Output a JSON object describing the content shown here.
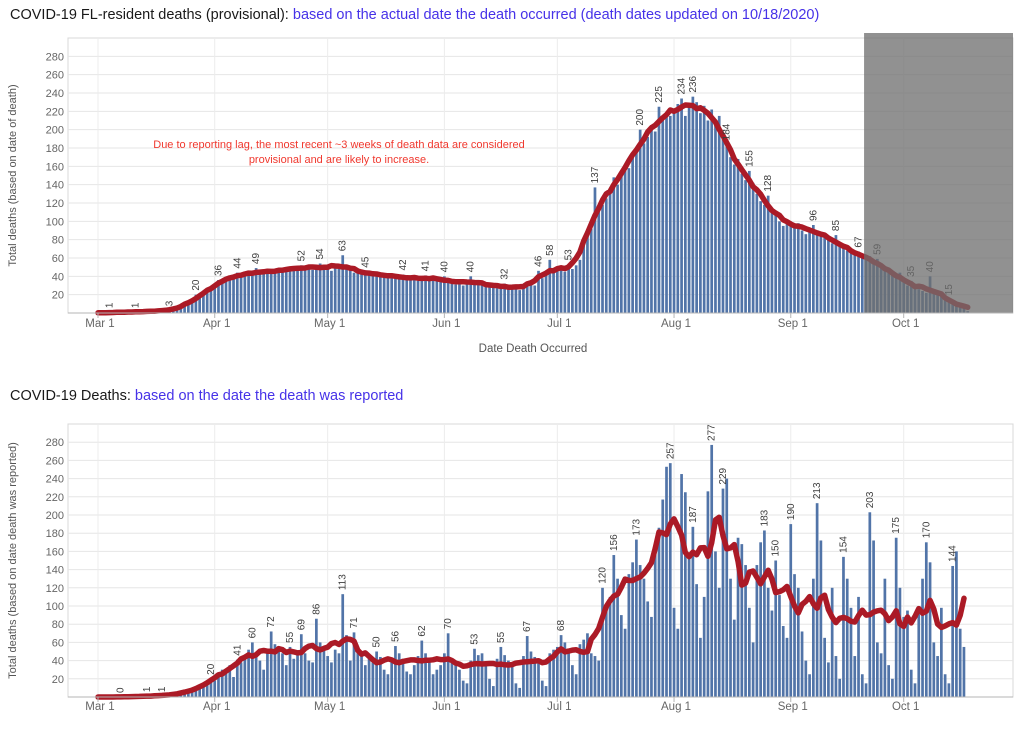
{
  "colors": {
    "bar": "#5174a8",
    "line": "#ab1a26",
    "overlay": "#6f6f6f",
    "grid": "#e6e6e6",
    "month_grid": "#ececec",
    "plot_border": "#d8d8d8",
    "axis_line": "#b5b5b5",
    "tick_text": "#666666",
    "axis_title_text": "#555555",
    "bar_label_text": "#3d3d3d",
    "title_blue": "#4632e8",
    "annotation_red": "#f0382e"
  },
  "chart_data": [
    {
      "type": "bar",
      "title_black": "COVID-19 FL-resident deaths (provisional): ",
      "title_blue": "based on the actual date the death occurred (death dates updated on 10/18/2020)",
      "ylabel": "Total deaths (based on date of death)",
      "xlabel": "Date Death Occurred",
      "start_date": "2020-03-01",
      "ylim": [
        0,
        300
      ],
      "yticks": [
        20,
        40,
        60,
        80,
        100,
        120,
        140,
        160,
        180,
        200,
        220,
        240,
        260,
        280
      ],
      "months": [
        {
          "label": "Mar 1",
          "day": 0
        },
        {
          "label": "Apr 1",
          "day": 31
        },
        {
          "label": "May 1",
          "day": 61
        },
        {
          "label": "Jun 1",
          "day": 92
        },
        {
          "label": "Jul 1",
          "day": 122
        },
        {
          "label": "Aug 1",
          "day": 153
        },
        {
          "label": "Sep 1",
          "day": 184
        },
        {
          "label": "Oct 1",
          "day": 214
        }
      ],
      "values": [
        0,
        0,
        0,
        1,
        0,
        1,
        1,
        1,
        1,
        1,
        1,
        2,
        1,
        2,
        2,
        2,
        2,
        3,
        2,
        3,
        4,
        5,
        6,
        8,
        10,
        14,
        20,
        16,
        19,
        24,
        28,
        30,
        36,
        33,
        37,
        40,
        38,
        44,
        40,
        42,
        44,
        41,
        49,
        45,
        43,
        46,
        44,
        47,
        45,
        48,
        46,
        50,
        47,
        49,
        52,
        48,
        50,
        47,
        51,
        54,
        49,
        50,
        46,
        52,
        48,
        63,
        51,
        47,
        44,
        46,
        43,
        45,
        45,
        42,
        41,
        43,
        40,
        42,
        39,
        41,
        38,
        42,
        38,
        36,
        39,
        35,
        40,
        41,
        37,
        36,
        38,
        35,
        40,
        34,
        36,
        31,
        35,
        30,
        33,
        40,
        33,
        35,
        30,
        32,
        29,
        31,
        27,
        30,
        32,
        28,
        26,
        29,
        25,
        28,
        31,
        33,
        30,
        46,
        38,
        41,
        58,
        44,
        47,
        50,
        45,
        53,
        48,
        52,
        58,
        78,
        85,
        92,
        137,
        110,
        118,
        125,
        132,
        148,
        140,
        155,
        162,
        158,
        170,
        178,
        200,
        185,
        192,
        205,
        198,
        225,
        210,
        218,
        215,
        220,
        228,
        234,
        215,
        225,
        236,
        230,
        218,
        226,
        210,
        222,
        205,
        215,
        195,
        184,
        170,
        162,
        168,
        152,
        145,
        155,
        142,
        130,
        122,
        118,
        128,
        112,
        108,
        100,
        95,
        102,
        100,
        94,
        98,
        90,
        86,
        92,
        96,
        88,
        84,
        86,
        80,
        76,
        85,
        74,
        72,
        68,
        70,
        64,
        67,
        60,
        58,
        62,
        55,
        59,
        50,
        46,
        48,
        42,
        38,
        44,
        36,
        30,
        35,
        28,
        26,
        24,
        22,
        40,
        24,
        20,
        18,
        16,
        15,
        12,
        10,
        8,
        5,
        2
      ],
      "bar_labels": [
        {
          "index": 3,
          "text": "1"
        },
        {
          "index": 10,
          "text": "1"
        },
        {
          "index": 19,
          "text": "3"
        },
        {
          "index": 26,
          "text": "20"
        },
        {
          "index": 32,
          "text": "36"
        },
        {
          "index": 37,
          "text": "44"
        },
        {
          "index": 42,
          "text": "49"
        },
        {
          "index": 54,
          "text": "52"
        },
        {
          "index": 59,
          "text": "54"
        },
        {
          "index": 65,
          "text": "63"
        },
        {
          "index": 71,
          "text": "45"
        },
        {
          "index": 81,
          "text": "42"
        },
        {
          "index": 87,
          "text": "41"
        },
        {
          "index": 92,
          "text": "40"
        },
        {
          "index": 99,
          "text": "40"
        },
        {
          "index": 108,
          "text": "32"
        },
        {
          "index": 117,
          "text": "46"
        },
        {
          "index": 120,
          "text": "58"
        },
        {
          "index": 125,
          "text": "53"
        },
        {
          "index": 132,
          "text": "137"
        },
        {
          "index": 144,
          "text": "200"
        },
        {
          "index": 149,
          "text": "225"
        },
        {
          "index": 155,
          "text": "234"
        },
        {
          "index": 158,
          "text": "236"
        },
        {
          "index": 167,
          "text": "184"
        },
        {
          "index": 173,
          "text": "155"
        },
        {
          "index": 178,
          "text": "128"
        },
        {
          "index": 190,
          "text": "96"
        },
        {
          "index": 196,
          "text": "85"
        },
        {
          "index": 202,
          "text": "67"
        }
      ],
      "faded_bar_labels": [
        {
          "index": 207,
          "text": "59"
        },
        {
          "index": 216,
          "text": "35"
        },
        {
          "index": 221,
          "text": "40"
        },
        {
          "index": 226,
          "text": "15"
        }
      ],
      "has_trend_line": true,
      "provisional_start_index": 204,
      "annotation": [
        "Due to reporting lag, the most recent ~3 weeks of death data are considered",
        "provisional and are likely to increase."
      ]
    },
    {
      "type": "bar",
      "title_black": "COVID-19 Deaths: ",
      "title_blue": "based on the date the death was reported",
      "ylabel": "Total deaths (based on date death was reported)",
      "xlabel": "",
      "start_date": "2020-03-01",
      "ylim": [
        0,
        300
      ],
      "yticks": [
        20,
        40,
        60,
        80,
        100,
        120,
        140,
        160,
        180,
        200,
        220,
        240,
        260,
        280
      ],
      "months": [
        {
          "label": "Mar 1",
          "day": 0
        },
        {
          "label": "Apr 1",
          "day": 31
        },
        {
          "label": "May 1",
          "day": 61
        },
        {
          "label": "Jun 1",
          "day": 92
        },
        {
          "label": "Jul 1",
          "day": 122
        },
        {
          "label": "Aug 1",
          "day": 153
        },
        {
          "label": "Sep 1",
          "day": 184
        },
        {
          "label": "Oct 1",
          "day": 214
        }
      ],
      "values": [
        0,
        0,
        0,
        0,
        0,
        0,
        0,
        0,
        1,
        0,
        1,
        0,
        1,
        1,
        1,
        2,
        1,
        1,
        2,
        3,
        2,
        4,
        3,
        6,
        5,
        8,
        10,
        9,
        12,
        15,
        20,
        18,
        25,
        30,
        28,
        35,
        22,
        41,
        38,
        45,
        52,
        60,
        48,
        40,
        30,
        50,
        72,
        58,
        54,
        48,
        35,
        55,
        42,
        50,
        69,
        48,
        40,
        38,
        86,
        60,
        55,
        45,
        38,
        52,
        48,
        113,
        68,
        40,
        71,
        55,
        48,
        35,
        42,
        38,
        50,
        44,
        30,
        25,
        40,
        56,
        48,
        42,
        28,
        25,
        35,
        45,
        62,
        48,
        38,
        25,
        30,
        35,
        48,
        70,
        42,
        38,
        30,
        18,
        15,
        40,
        53,
        46,
        48,
        35,
        20,
        12,
        42,
        55,
        46,
        40,
        38,
        15,
        10,
        45,
        67,
        50,
        44,
        40,
        18,
        12,
        48,
        52,
        55,
        68,
        60,
        52,
        35,
        25,
        58,
        63,
        70,
        48,
        45,
        40,
        120,
        95,
        110,
        156,
        130,
        90,
        75,
        135,
        148,
        173,
        145,
        130,
        105,
        88,
        163,
        186,
        217,
        253,
        257,
        98,
        75,
        245,
        225,
        158,
        187,
        124,
        65,
        110,
        226,
        277,
        160,
        120,
        229,
        240,
        130,
        85,
        175,
        168,
        145,
        98,
        60,
        145,
        170,
        183,
        120,
        95,
        150,
        112,
        78,
        65,
        190,
        135,
        120,
        72,
        40,
        25,
        130,
        213,
        172,
        65,
        38,
        120,
        45,
        20,
        154,
        130,
        98,
        45,
        110,
        25,
        15,
        203,
        172,
        60,
        48,
        130,
        35,
        20,
        175,
        120,
        88,
        95,
        30,
        15,
        92,
        130,
        170,
        148,
        60,
        45,
        98,
        25,
        15,
        144,
        160,
        75,
        55
      ],
      "bar_labels": [
        {
          "index": 6,
          "text": "0"
        },
        {
          "index": 13,
          "text": "1"
        },
        {
          "index": 17,
          "text": "1"
        },
        {
          "index": 30,
          "text": "20"
        },
        {
          "index": 37,
          "text": "41"
        },
        {
          "index": 41,
          "text": "60"
        },
        {
          "index": 46,
          "text": "72"
        },
        {
          "index": 51,
          "text": "55"
        },
        {
          "index": 54,
          "text": "69"
        },
        {
          "index": 58,
          "text": "86"
        },
        {
          "index": 65,
          "text": "113"
        },
        {
          "index": 68,
          "text": "71"
        },
        {
          "index": 74,
          "text": "50"
        },
        {
          "index": 79,
          "text": "56"
        },
        {
          "index": 86,
          "text": "62"
        },
        {
          "index": 93,
          "text": "70"
        },
        {
          "index": 100,
          "text": "53"
        },
        {
          "index": 107,
          "text": "55"
        },
        {
          "index": 114,
          "text": "67"
        },
        {
          "index": 123,
          "text": "68"
        },
        {
          "index": 134,
          "text": "120"
        },
        {
          "index": 137,
          "text": "156"
        },
        {
          "index": 143,
          "text": "173"
        },
        {
          "index": 152,
          "text": "257"
        },
        {
          "index": 158,
          "text": "187"
        },
        {
          "index": 163,
          "text": "277"
        },
        {
          "index": 166,
          "text": "229"
        },
        {
          "index": 177,
          "text": "183"
        },
        {
          "index": 180,
          "text": "150"
        },
        {
          "index": 184,
          "text": "190"
        },
        {
          "index": 191,
          "text": "213"
        },
        {
          "index": 198,
          "text": "154"
        },
        {
          "index": 205,
          "text": "203"
        },
        {
          "index": 212,
          "text": "175"
        },
        {
          "index": 220,
          "text": "170"
        },
        {
          "index": 227,
          "text": "144"
        }
      ],
      "faded_bar_labels": [],
      "has_trend_line": true,
      "provisional_start_index": null,
      "annotation": null
    }
  ]
}
